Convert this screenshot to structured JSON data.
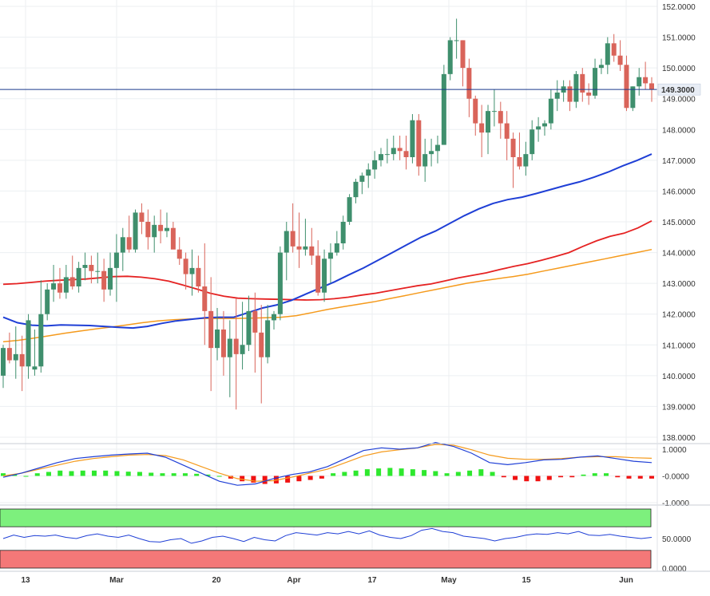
{
  "chart_data": [
    {
      "type": "candlestick",
      "title": "",
      "ylim": [
        138.0,
        152.0
      ],
      "y_ticks": [
        "152.0000",
        "151.0000",
        "150.0000",
        "149.0000",
        "148.0000",
        "147.0000",
        "146.0000",
        "145.0000",
        "144.0000",
        "143.0000",
        "142.0000",
        "141.0000",
        "140.0000",
        "139.0000",
        "138.0000"
      ],
      "x_ticks": [
        "13",
        "Mar",
        "20",
        "Apr",
        "17",
        "May",
        "15",
        "Jun"
      ],
      "current_price": 149.3,
      "current_price_label": "149.3000",
      "colors": {
        "up": "#3f8f6d",
        "down": "#d9645a",
        "ma_blue": "#1f3fd6",
        "ma_red": "#e52222",
        "ma_orange": "#f59a1c",
        "price_line": "#1a3a8c",
        "label_bg": "#e8edf5"
      },
      "candles": [
        [
          140.0,
          141.0,
          139.6,
          140.9
        ],
        [
          140.9,
          141.4,
          140.4,
          140.5
        ],
        [
          140.5,
          141.6,
          139.9,
          140.7
        ],
        [
          140.7,
          141.3,
          139.5,
          140.3
        ],
        [
          140.3,
          142.0,
          139.9,
          141.8
        ],
        [
          140.2,
          141.5,
          140.0,
          140.3
        ],
        [
          140.3,
          143.1,
          140.1,
          142.0
        ],
        [
          142.0,
          143.0,
          141.8,
          142.8
        ],
        [
          142.8,
          143.6,
          142.4,
          143.0
        ],
        [
          143.0,
          143.5,
          142.5,
          142.7
        ],
        [
          142.7,
          143.6,
          142.5,
          143.2
        ],
        [
          143.2,
          143.9,
          142.8,
          142.9
        ],
        [
          142.9,
          143.7,
          142.7,
          143.5
        ],
        [
          143.5,
          144.0,
          143.1,
          143.6
        ],
        [
          143.6,
          143.9,
          143.0,
          143.4
        ],
        [
          143.4,
          144.0,
          143.0,
          143.4
        ],
        [
          143.4,
          143.8,
          142.4,
          142.8
        ],
        [
          142.8,
          144.0,
          142.6,
          143.5
        ],
        [
          143.5,
          144.6,
          142.4,
          144.0
        ],
        [
          144.0,
          144.8,
          143.4,
          144.5
        ],
        [
          144.5,
          145.2,
          144.0,
          144.1
        ],
        [
          144.1,
          145.4,
          144.0,
          145.3
        ],
        [
          145.3,
          145.6,
          144.6,
          145.0
        ],
        [
          145.0,
          145.4,
          144.1,
          144.5
        ],
        [
          144.5,
          145.2,
          144.0,
          144.9
        ],
        [
          144.9,
          145.4,
          144.3,
          144.7
        ],
        [
          144.7,
          145.3,
          144.5,
          144.8
        ],
        [
          144.8,
          145.0,
          144.2,
          144.1
        ],
        [
          144.1,
          144.5,
          143.6,
          143.8
        ],
        [
          143.8,
          144.0,
          142.8,
          143.3
        ],
        [
          143.3,
          144.1,
          142.6,
          143.5
        ],
        [
          143.5,
          143.9,
          142.7,
          142.9
        ],
        [
          142.9,
          144.3,
          141.0,
          142.1
        ],
        [
          142.1,
          143.2,
          139.5,
          140.9
        ],
        [
          140.9,
          142.2,
          140.5,
          141.5
        ],
        [
          141.5,
          142.1,
          140.0,
          140.6
        ],
        [
          140.6,
          141.8,
          139.3,
          141.2
        ],
        [
          141.2,
          142.5,
          138.9,
          140.7
        ],
        [
          140.7,
          142.4,
          140.2,
          141.0
        ],
        [
          141.0,
          142.6,
          140.8,
          142.1
        ],
        [
          142.1,
          142.7,
          140.1,
          141.4
        ],
        [
          141.4,
          142.3,
          139.1,
          140.6
        ],
        [
          140.6,
          142.3,
          140.4,
          141.8
        ],
        [
          141.8,
          142.1,
          141.5,
          142.0
        ],
        [
          142.0,
          144.2,
          141.8,
          144.0
        ],
        [
          144.0,
          145.0,
          143.1,
          144.7
        ],
        [
          144.7,
          145.6,
          144.0,
          144.2
        ],
        [
          144.2,
          145.3,
          143.5,
          144.1
        ],
        [
          144.1,
          145.1,
          143.9,
          144.2
        ],
        [
          144.2,
          144.8,
          143.6,
          143.9
        ],
        [
          143.9,
          144.4,
          142.6,
          142.7
        ],
        [
          142.7,
          144.1,
          142.4,
          143.8
        ],
        [
          143.8,
          144.3,
          143.0,
          144.0
        ],
        [
          144.0,
          144.7,
          143.9,
          144.3
        ],
        [
          144.3,
          145.2,
          144.1,
          145.0
        ],
        [
          145.0,
          145.9,
          144.9,
          145.8
        ],
        [
          145.8,
          146.4,
          145.6,
          146.3
        ],
        [
          146.3,
          146.6,
          145.9,
          146.5
        ],
        [
          146.5,
          146.9,
          146.1,
          146.7
        ],
        [
          146.7,
          147.3,
          146.4,
          147.0
        ],
        [
          147.0,
          147.4,
          146.8,
          147.2
        ],
        [
          147.2,
          147.7,
          146.9,
          147.2
        ],
        [
          147.2,
          147.8,
          147.0,
          147.4
        ],
        [
          147.4,
          147.8,
          147.0,
          147.3
        ],
        [
          147.3,
          147.8,
          146.7,
          147.1
        ],
        [
          147.1,
          148.5,
          146.9,
          148.3
        ],
        [
          148.3,
          148.5,
          146.5,
          146.8
        ],
        [
          146.8,
          147.7,
          146.3,
          147.2
        ],
        [
          147.2,
          147.7,
          146.8,
          147.3
        ],
        [
          147.3,
          147.8,
          146.9,
          147.5
        ],
        [
          147.5,
          150.1,
          147.5,
          149.8
        ],
        [
          149.8,
          151.0,
          149.6,
          150.9
        ],
        [
          150.9,
          151.6,
          150.3,
          150.9
        ],
        [
          150.9,
          150.9,
          149.4,
          150.0
        ],
        [
          150.0,
          150.3,
          148.4,
          149.0
        ],
        [
          149.0,
          149.1,
          147.8,
          148.2
        ],
        [
          148.2,
          148.8,
          147.1,
          147.9
        ],
        [
          147.9,
          148.8,
          147.2,
          148.6
        ],
        [
          148.6,
          149.3,
          148.1,
          148.6
        ],
        [
          148.6,
          148.9,
          147.7,
          148.2
        ],
        [
          148.2,
          148.6,
          147.0,
          147.7
        ],
        [
          147.7,
          147.9,
          146.1,
          147.1
        ],
        [
          147.1,
          147.9,
          146.7,
          146.8
        ],
        [
          146.8,
          147.6,
          146.5,
          147.2
        ],
        [
          147.2,
          148.3,
          147.0,
          148.0
        ],
        [
          148.0,
          148.4,
          147.6,
          148.1
        ],
        [
          148.1,
          148.3,
          147.8,
          148.2
        ],
        [
          148.2,
          149.3,
          148.0,
          149.0
        ],
        [
          149.0,
          149.6,
          148.6,
          149.2
        ],
        [
          149.2,
          149.6,
          148.9,
          149.4
        ],
        [
          149.4,
          149.6,
          148.6,
          148.9
        ],
        [
          148.9,
          149.9,
          148.7,
          149.8
        ],
        [
          149.8,
          150.0,
          148.9,
          149.2
        ],
        [
          149.2,
          149.5,
          148.8,
          149.1
        ],
        [
          149.1,
          150.3,
          149.0,
          150.0
        ],
        [
          150.0,
          150.3,
          149.8,
          150.1
        ],
        [
          150.1,
          151.0,
          149.8,
          150.8
        ],
        [
          150.8,
          151.1,
          150.2,
          150.4
        ],
        [
          150.4,
          150.9,
          149.9,
          150.1
        ],
        [
          150.1,
          150.4,
          148.6,
          148.7
        ],
        [
          148.7,
          149.4,
          148.6,
          149.4
        ],
        [
          149.4,
          150.0,
          149.1,
          149.7
        ],
        [
          149.7,
          150.2,
          149.3,
          149.5
        ],
        [
          149.5,
          149.7,
          148.9,
          149.3
        ]
      ],
      "ma_blue": [
        141.9,
        141.72,
        141.64,
        141.62,
        141.65,
        141.64,
        141.63,
        141.6,
        141.57,
        141.55,
        141.6,
        141.7,
        141.78,
        141.83,
        141.88,
        141.9,
        141.9,
        142.05,
        142.2,
        142.3,
        142.45,
        142.65,
        142.85,
        143.05,
        143.28,
        143.5,
        143.75,
        144.0,
        144.25,
        144.5,
        144.7,
        144.95,
        145.2,
        145.42,
        145.6,
        145.72,
        145.8,
        145.92,
        146.05,
        146.18,
        146.3,
        146.45,
        146.62,
        146.82,
        147.0,
        147.2
      ],
      "ma_red": [
        142.97,
        142.99,
        143.03,
        143.07,
        143.1,
        143.12,
        143.14,
        143.18,
        143.22,
        143.23,
        143.2,
        143.15,
        143.07,
        142.95,
        142.82,
        142.68,
        142.58,
        142.52,
        142.5,
        142.49,
        142.48,
        142.47,
        142.46,
        142.47,
        142.5,
        142.55,
        142.62,
        142.68,
        142.76,
        142.84,
        142.92,
        142.98,
        143.08,
        143.18,
        143.26,
        143.34,
        143.45,
        143.55,
        143.64,
        143.75,
        143.87,
        144.0,
        144.2,
        144.38,
        144.53,
        144.63,
        144.8,
        145.03
      ],
      "ma_orange": [
        141.1,
        141.15,
        141.22,
        141.3,
        141.38,
        141.45,
        141.52,
        141.58,
        141.65,
        141.72,
        141.78,
        141.82,
        141.84,
        141.86,
        141.86,
        141.86,
        141.87,
        141.88,
        141.9,
        141.95,
        142.05,
        142.15,
        142.24,
        142.32,
        142.4,
        142.5,
        142.6,
        142.7,
        142.8,
        142.9,
        143.0,
        143.08,
        143.15,
        143.22,
        143.3,
        143.4,
        143.5,
        143.6,
        143.7,
        143.8,
        143.9,
        144.0,
        144.1
      ],
      "macd_indicator": {
        "ylim": [
          -1.0,
          1.0
        ],
        "y_ticks": [
          "1.0000",
          "-0.0000",
          "-1.0000"
        ],
        "histogram": [
          0.1,
          0.05,
          0,
          0.1,
          0.15,
          0.2,
          0.18,
          0.2,
          0.2,
          0.2,
          0.18,
          0.16,
          0.15,
          0.12,
          0.1,
          0.1,
          0.1,
          0.08,
          0.05,
          0,
          -0.1,
          -0.2,
          -0.25,
          -0.3,
          -0.28,
          -0.25,
          -0.2,
          -0.15,
          -0.1,
          0.1,
          0.15,
          0.2,
          0.25,
          0.28,
          0.3,
          0.28,
          0.25,
          0.22,
          0.18,
          0.1,
          0.15,
          0.2,
          0.25,
          0.15,
          -0.05,
          -0.15,
          -0.2,
          -0.2,
          -0.15,
          -0.05,
          -0.05,
          0.05,
          0.1,
          0.1,
          -0.05,
          -0.1,
          -0.1,
          -0.1
        ],
        "line_blue": [
          -0.05,
          0.1,
          0.3,
          0.5,
          0.65,
          0.72,
          0.78,
          0.82,
          0.85,
          0.7,
          0.4,
          0.1,
          -0.2,
          -0.35,
          -0.3,
          -0.1,
          0.05,
          0.15,
          0.35,
          0.65,
          0.95,
          1.05,
          1.0,
          1.05,
          1.25,
          1.1,
          0.85,
          0.5,
          0.42,
          0.5,
          0.6,
          0.62,
          0.7,
          0.75,
          0.65,
          0.55,
          0.5
        ],
        "line_orange": [
          0.0,
          0.1,
          0.25,
          0.4,
          0.55,
          0.65,
          0.72,
          0.78,
          0.8,
          0.76,
          0.6,
          0.35,
          0.1,
          -0.1,
          -0.2,
          -0.18,
          -0.05,
          0.1,
          0.25,
          0.5,
          0.75,
          0.9,
          0.98,
          1.05,
          1.18,
          1.15,
          0.98,
          0.78,
          0.66,
          0.62,
          0.62,
          0.65,
          0.7,
          0.72,
          0.72,
          0.68,
          0.66
        ]
      },
      "rsi_indicator": {
        "ylim": [
          0,
          100
        ],
        "y_ticks": [
          "50.0000",
          "0.0000"
        ],
        "line": [
          50,
          56,
          52,
          55,
          54,
          56,
          52,
          50,
          55,
          58,
          54,
          52,
          56,
          50,
          45,
          44,
          48,
          50,
          42,
          46,
          52,
          54,
          50,
          45,
          52,
          48,
          46,
          55,
          60,
          58,
          56,
          60,
          58,
          62,
          58,
          63,
          56,
          52,
          50,
          55,
          64,
          67,
          62,
          60,
          54,
          52,
          50,
          46,
          50,
          52,
          56,
          58,
          57,
          60,
          58,
          62,
          56,
          55,
          57,
          54,
          52,
          50,
          52
        ]
      }
    }
  ]
}
